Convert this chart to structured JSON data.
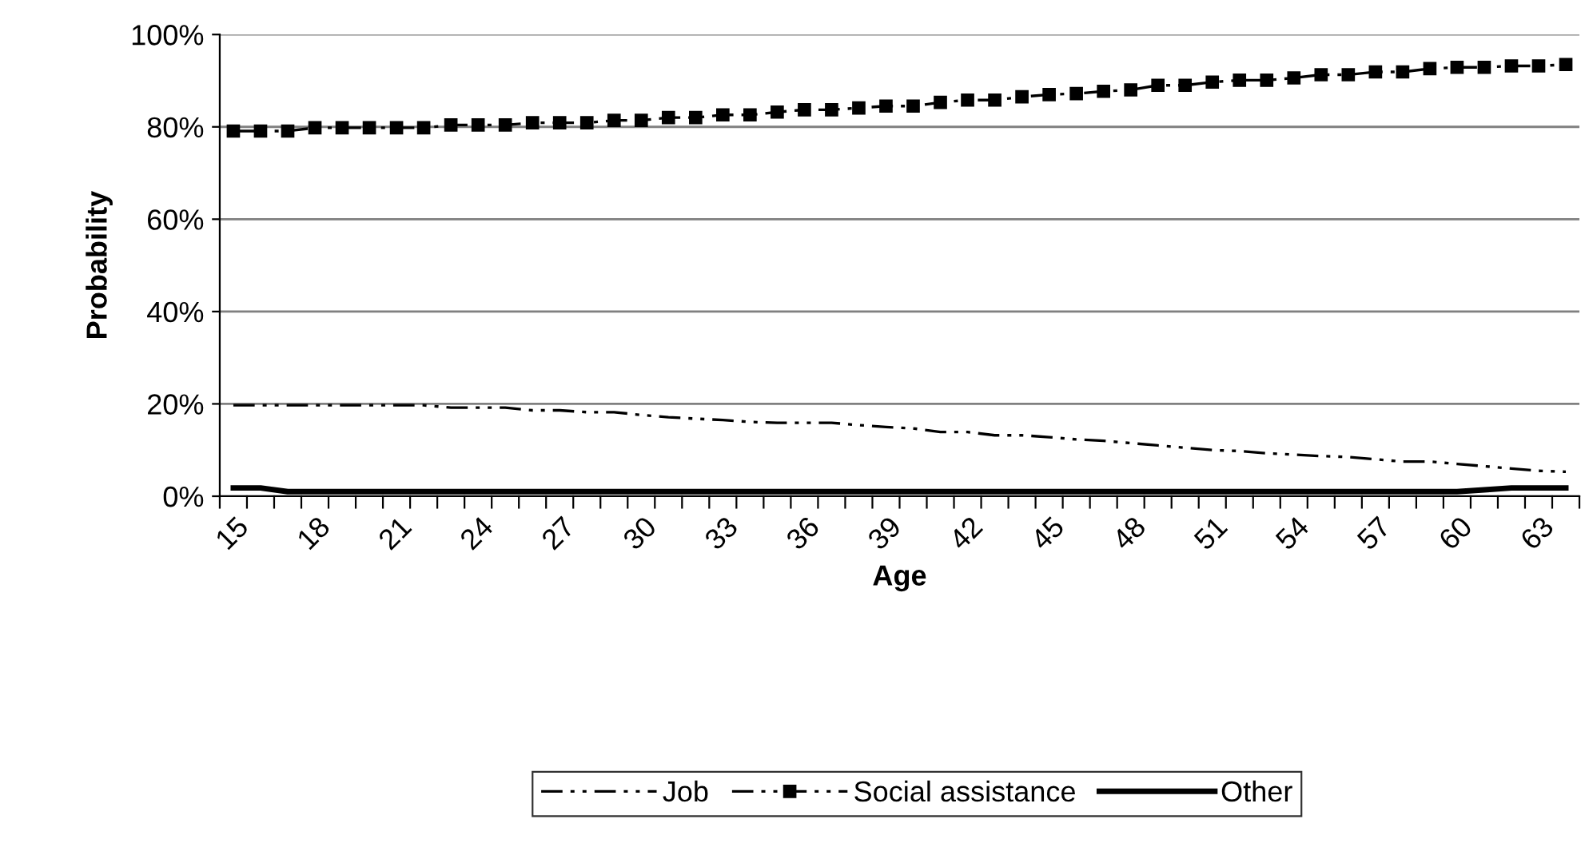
{
  "chart_data": {
    "type": "line",
    "xlabel": "Age",
    "ylabel": "Probability",
    "categories": [
      "15",
      null,
      null,
      "18",
      null,
      null,
      "21",
      null,
      null,
      "24",
      null,
      null,
      "27",
      null,
      null,
      "30",
      null,
      null,
      "33",
      null,
      null,
      "36",
      null,
      null,
      "39",
      null,
      null,
      "42",
      null,
      null,
      "45",
      null,
      null,
      "48",
      null,
      null,
      "51",
      null,
      null,
      "54",
      null,
      null,
      "57",
      null,
      null,
      "60",
      null,
      null,
      "63",
      null
    ],
    "series": [
      {
        "name": "Job",
        "color": "#000000",
        "line_style": "dashdot",
        "marker": "none",
        "values": [
          19.7,
          19.7,
          19.7,
          19.7,
          19.7,
          19.7,
          19.7,
          19.7,
          19.2,
          19.2,
          19.2,
          18.6,
          18.6,
          18.2,
          18.2,
          17.6,
          17.1,
          16.8,
          16.5,
          16.1,
          15.9,
          15.9,
          15.9,
          15.4,
          15.0,
          14.7,
          13.9,
          13.9,
          13.2,
          13.2,
          12.8,
          12.3,
          12.0,
          11.5,
          11.0,
          10.5,
          10.0,
          9.8,
          9.3,
          9.0,
          8.7,
          8.5,
          8.0,
          7.5,
          7.5,
          7.0,
          6.5,
          6.0,
          5.5,
          5.3
        ]
      },
      {
        "name": "Social assistance",
        "color": "#000000",
        "line_style": "dashdot",
        "marker": "square",
        "values": [
          79.1,
          79.1,
          79.1,
          79.8,
          79.8,
          79.8,
          79.8,
          79.8,
          80.4,
          80.4,
          80.4,
          80.9,
          80.9,
          80.9,
          81.4,
          81.4,
          82.0,
          82.0,
          82.6,
          82.6,
          83.2,
          83.7,
          83.7,
          84.1,
          84.5,
          84.5,
          85.3,
          85.8,
          85.8,
          86.5,
          87.0,
          87.2,
          87.7,
          88.0,
          89.0,
          89.0,
          89.7,
          90.1,
          90.1,
          90.6,
          91.3,
          91.3,
          91.9,
          91.9,
          92.6,
          92.9,
          92.9,
          93.2,
          93.2,
          93.5
        ]
      },
      {
        "name": "Other",
        "color": "#000000",
        "line_style": "solid",
        "marker": "none",
        "values": [
          1.8,
          1.8,
          1.0,
          1.0,
          1.0,
          1.0,
          1.0,
          1.0,
          1.0,
          1.0,
          1.0,
          1.0,
          1.0,
          1.0,
          1.0,
          1.0,
          1.0,
          1.0,
          1.0,
          1.0,
          1.0,
          1.0,
          1.0,
          1.0,
          1.0,
          1.0,
          1.0,
          1.0,
          1.0,
          1.0,
          1.0,
          1.0,
          1.0,
          1.0,
          1.0,
          1.0,
          1.0,
          1.0,
          1.0,
          1.0,
          1.0,
          1.0,
          1.0,
          1.0,
          1.0,
          1.0,
          1.4,
          1.8,
          1.8,
          1.8
        ]
      }
    ],
    "ylim": [
      0,
      100
    ],
    "yticks": [
      {
        "value": 0,
        "label": "0%"
      },
      {
        "value": 20,
        "label": "20%"
      },
      {
        "value": 40,
        "label": "40%"
      },
      {
        "value": 60,
        "label": "60%"
      },
      {
        "value": 80,
        "label": "80%"
      },
      {
        "value": 100,
        "label": "100%"
      }
    ],
    "grid": "y",
    "legend": "bottom"
  }
}
